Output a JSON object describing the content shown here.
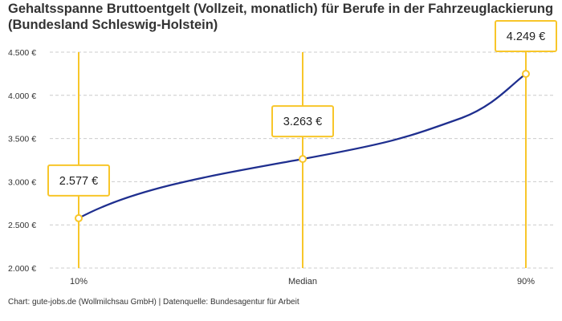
{
  "chart_data": {
    "type": "line",
    "title": "Gehaltsspanne Bruttoentgelt (Vollzeit, monatlich) für Berufe in der Fahrzeuglackierung (Bundesland Schleswig-Holstein)",
    "categories": [
      "10%",
      "Median",
      "90%"
    ],
    "values": [
      2577,
      3263,
      4249
    ],
    "value_labels": [
      "2.577 €",
      "3.263 €",
      "4.249 €"
    ],
    "xlabel": "",
    "ylabel": "",
    "ylim": [
      2000,
      4500
    ],
    "yticks": [
      2000,
      2500,
      3000,
      3500,
      4000,
      4500
    ],
    "ytick_labels": [
      "2.000 €",
      "2.500 €",
      "3.000 €",
      "3.500 €",
      "4.000 €",
      "4.500 €"
    ],
    "grid": true,
    "legend": "none",
    "colors": {
      "line": "#1f2f8f",
      "marker": "#f8c62a",
      "grid": "#cccccc"
    }
  },
  "footer": "Chart: gute-jobs.de (Wollmilchsau GmbH) | Datenquelle: Bundesagentur für Arbeit"
}
